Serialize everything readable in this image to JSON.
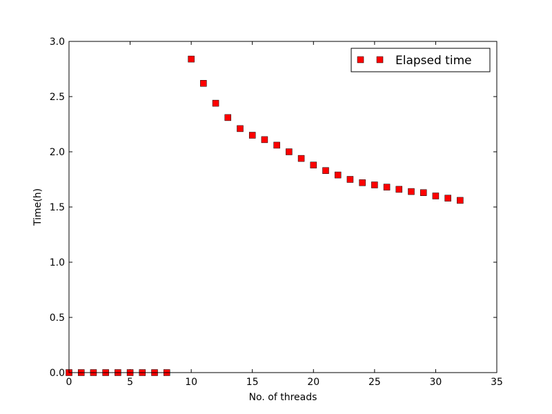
{
  "chart_data": {
    "type": "scatter",
    "title": "",
    "xlabel": "No. of threads",
    "ylabel": "Time(h)",
    "xlim": [
      0,
      35
    ],
    "ylim": [
      0.0,
      3.0
    ],
    "xticks": [
      "0",
      "5",
      "10",
      "15",
      "20",
      "25",
      "30",
      "35"
    ],
    "yticks": [
      "0.0",
      "0.5",
      "1.0",
      "1.5",
      "2.0",
      "2.5",
      "3.0"
    ],
    "grid": false,
    "legend_position": "top-right",
    "series": [
      {
        "name": "Elapsed time",
        "marker": "square",
        "color": "#ff0000",
        "x": [
          0,
          1,
          2,
          3,
          4,
          5,
          6,
          7,
          8,
          10,
          11,
          12,
          13,
          14,
          15,
          16,
          17,
          18,
          19,
          20,
          21,
          22,
          23,
          24,
          25,
          26,
          27,
          28,
          29,
          30,
          31,
          32
        ],
        "y": [
          0,
          0,
          0,
          0,
          0,
          0,
          0,
          0,
          0,
          2.84,
          2.62,
          2.44,
          2.31,
          2.21,
          2.15,
          2.11,
          2.06,
          2.0,
          1.94,
          1.88,
          1.83,
          1.79,
          1.75,
          1.72,
          1.7,
          1.68,
          1.66,
          1.64,
          1.63,
          1.6,
          1.58,
          1.56
        ]
      }
    ]
  }
}
